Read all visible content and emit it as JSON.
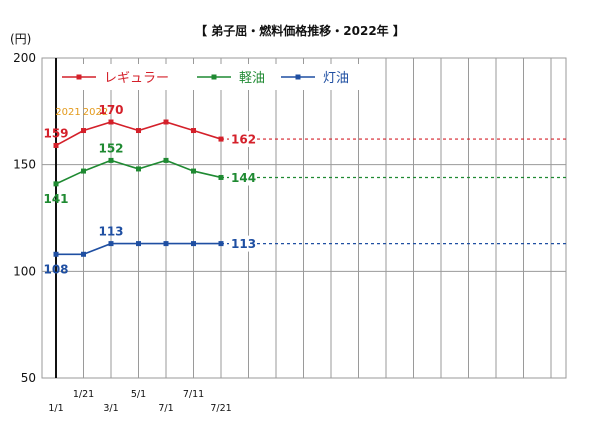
{
  "title": "【 弟子屈・燃料価格推移・2022年 】",
  "chart_data": {
    "type": "line",
    "title": "【 弟子屈・燃料価格推移・2022年 】",
    "unit_label": "(円)",
    "ylim": [
      50,
      200
    ],
    "yticks": [
      50,
      100,
      150,
      200
    ],
    "grid": true,
    "legend_position": "top-left",
    "year_labels": [
      {
        "text": "2021",
        "x_index": 0,
        "color": "#e39a1c"
      },
      {
        "text": "2022",
        "x_index": 1,
        "color": "#e39a1c"
      }
    ],
    "x_slots": 19,
    "xticks": [
      {
        "label": "1/1",
        "index": 0,
        "row": "bottom"
      },
      {
        "label": "1/21",
        "index": 1,
        "row": "top"
      },
      {
        "label": "3/1",
        "index": 2,
        "row": "bottom"
      },
      {
        "label": "5/1",
        "index": 3,
        "row": "top"
      },
      {
        "label": "7/1",
        "index": 4,
        "row": "bottom"
      },
      {
        "label": "7/11",
        "index": 5,
        "row": "top"
      },
      {
        "label": "7/21",
        "index": 6,
        "row": "bottom"
      }
    ],
    "series": [
      {
        "name": "レギュラー",
        "color": "#d4202a",
        "values": [
          159,
          166,
          170,
          166,
          170,
          166,
          162
        ],
        "point_labels": [
          {
            "index": 0,
            "text": "159",
            "pos": "above"
          },
          {
            "index": 2,
            "text": "170",
            "pos": "above"
          }
        ],
        "latest_label": "162",
        "reference_value": 162
      },
      {
        "name": "軽油",
        "color": "#1f8a32",
        "values": [
          141,
          147,
          152,
          148,
          152,
          147,
          144
        ],
        "point_labels": [
          {
            "index": 0,
            "text": "141",
            "pos": "below"
          },
          {
            "index": 2,
            "text": "152",
            "pos": "above"
          }
        ],
        "latest_label": "144",
        "reference_value": 144
      },
      {
        "name": "灯油",
        "color": "#1f4fa2",
        "values": [
          108,
          108,
          113,
          113,
          113,
          113,
          113
        ],
        "point_labels": [
          {
            "index": 0,
            "text": "108",
            "pos": "below"
          },
          {
            "index": 2,
            "text": "113",
            "pos": "above"
          }
        ],
        "latest_label": "113",
        "reference_value": 113
      }
    ]
  }
}
